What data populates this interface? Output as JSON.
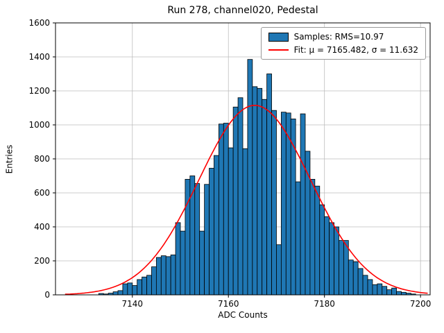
{
  "chart_data": {
    "type": "bar",
    "title": "Run 278, channel020, Pedestal",
    "xlabel": "ADC Counts",
    "ylabel": "Entries",
    "xlim": [
      7124,
      7202
    ],
    "ylim": [
      0,
      1600
    ],
    "xticks": [
      7140,
      7160,
      7180,
      7200
    ],
    "yticks": [
      0,
      200,
      400,
      600,
      800,
      1000,
      1200,
      1400,
      1600
    ],
    "grid": true,
    "grid_color": "#bdbdbd",
    "bar_color": "#1f77b4",
    "bar_edge_color": "#000000",
    "fit_color": "#ff0000",
    "bin_start": 7133,
    "bin_width": 1,
    "counts": [
      8,
      5,
      10,
      18,
      25,
      65,
      70,
      55,
      90,
      105,
      115,
      165,
      220,
      230,
      225,
      235,
      425,
      375,
      680,
      700,
      655,
      375,
      650,
      745,
      820,
      1005,
      1010,
      865,
      1105,
      1160,
      860,
      1385,
      1225,
      1215,
      1150,
      1300,
      1085,
      295,
      1075,
      1070,
      1035,
      665,
      1065,
      845,
      680,
      640,
      530,
      460,
      425,
      400,
      320,
      320,
      205,
      195,
      155,
      115,
      90,
      60,
      65,
      50,
      30,
      40,
      20,
      15,
      10,
      5
    ],
    "fit": {
      "mu": 7165.482,
      "sigma": 11.632,
      "amplitude": 1115,
      "x_start": 7126,
      "x_end": 7201.5
    },
    "legend": {
      "samples_label": "Samples: RMS=10.97",
      "fit_label": "Fit: μ = 7165.482, σ = 11.632"
    }
  }
}
